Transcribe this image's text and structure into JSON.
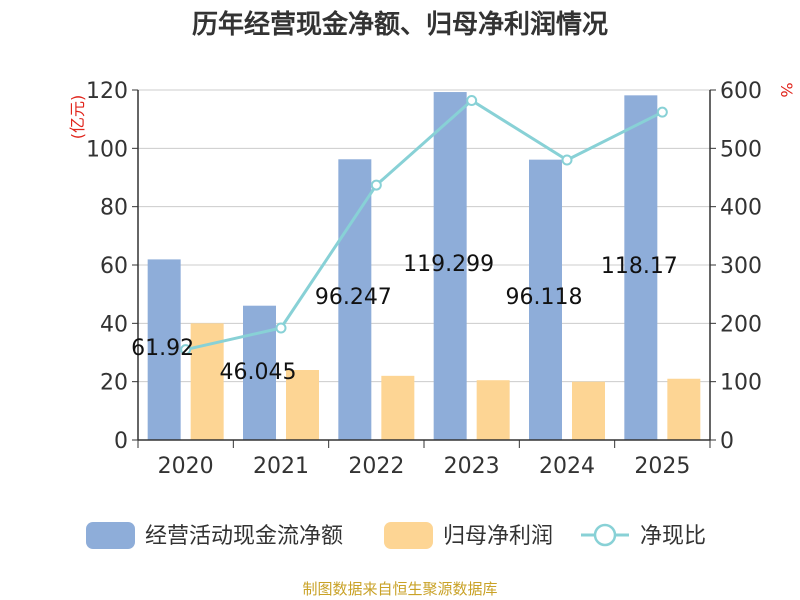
{
  "chart_data": {
    "type": "bar",
    "title": "历年经营现金净额、归母净利润情况",
    "categories": [
      "2020",
      "2021",
      "2022",
      "2023",
      "2024",
      "2025"
    ],
    "series": [
      {
        "name": "经营活动现金流净额",
        "type": "bar",
        "axis": "left",
        "color": "#8eadd9",
        "values": [
          61.92,
          46.045,
          96.247,
          119.299,
          96.118,
          118.17
        ],
        "labels": [
          "61.92",
          "46.045",
          "96.247",
          "119.299",
          "96.118",
          "118.17"
        ]
      },
      {
        "name": "归母净利润",
        "type": "bar",
        "axis": "left",
        "color": "#fdd594",
        "values": [
          40,
          24,
          22,
          20.5,
          20,
          21
        ]
      },
      {
        "name": "净现比",
        "type": "line",
        "axis": "right",
        "color": "#88d1d6",
        "values": [
          155,
          192,
          437,
          582,
          480,
          562
        ]
      }
    ],
    "y_left": {
      "unit": "(亿元)",
      "ylim": [
        0,
        120
      ],
      "ticks": [
        "0",
        "20",
        "40",
        "60",
        "80",
        "100",
        "120"
      ]
    },
    "y_right": {
      "unit": "%",
      "ylim": [
        0,
        600
      ],
      "ticks": [
        "0",
        "100",
        "200",
        "300",
        "400",
        "500",
        "600"
      ]
    },
    "grid": true,
    "legend_position": "bottom",
    "colors": {
      "unit": "#e0241b",
      "source": "#c9a227",
      "grid": "#cccccc",
      "axis": "#333333"
    }
  },
  "source": "制图数据来自恒生聚源数据库"
}
